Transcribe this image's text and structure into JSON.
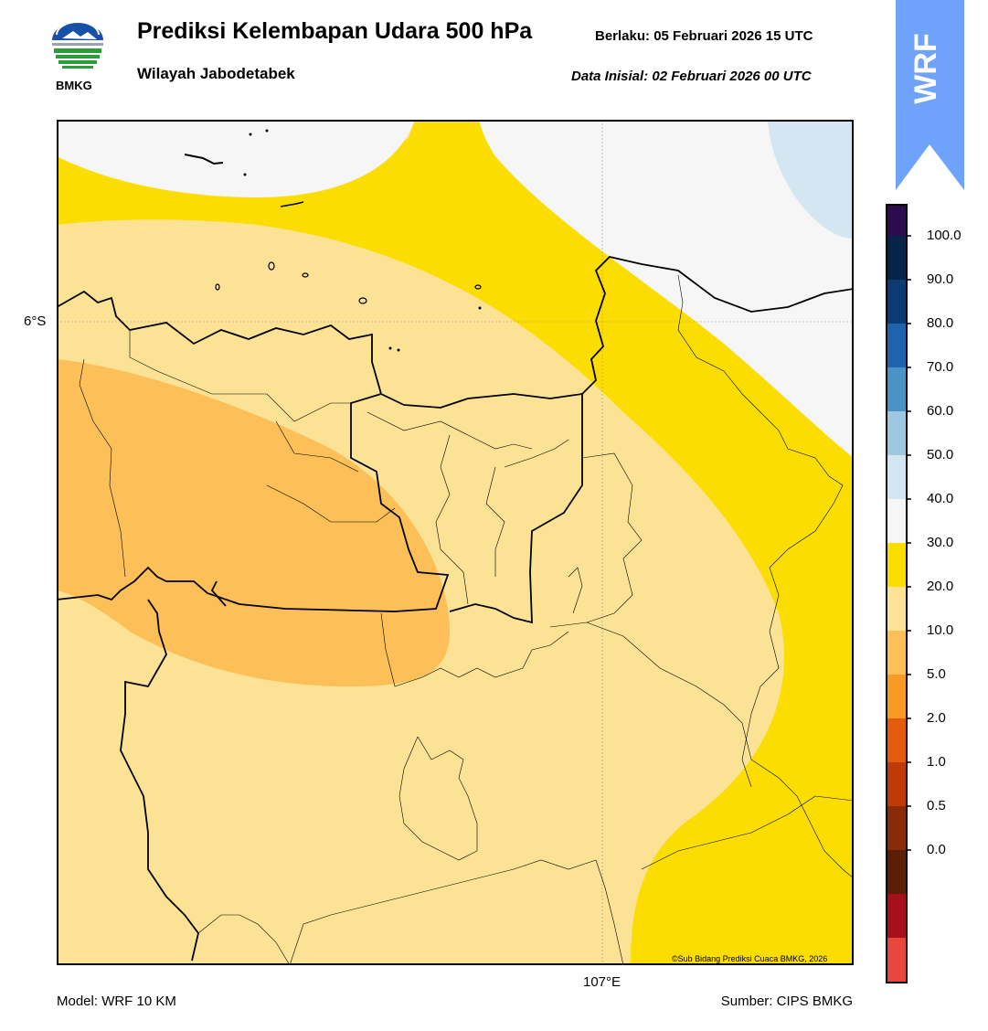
{
  "header": {
    "title": "Prediksi Kelembapan Udara 500 hPa",
    "subtitle": "Wilayah Jabodetabek",
    "valid_time": "Berlaku:  05 Februari 2026 15 UTC",
    "init_time": "Data Inisial:  02 Februari 2026 00 UTC",
    "logo_text": "BMKG",
    "model_badge": "WRF"
  },
  "map": {
    "lat_label": "6°S",
    "lon_label": "107°E",
    "copyright": "©Sub Bidang Prediksi Cuaca BMKG, 2026"
  },
  "footer": {
    "model": "Model: WRF 10 KM",
    "source": "Sumber: CIPS BMKG"
  },
  "colorbar": {
    "labels": [
      "100.0",
      "90.0",
      "80.0",
      "70.0",
      "60.0",
      "50.0",
      "40.0",
      "30.0",
      "20.0",
      "10.0",
      "5.0",
      "2.0",
      "1.0",
      "0.5",
      "0.0"
    ],
    "colors": [
      "#2d0b4e",
      "#06244a",
      "#0d3a73",
      "#1f63ad",
      "#4a93c6",
      "#9dc8e0",
      "#d3e6f1",
      "#f6f6f6",
      "#fbdd00",
      "#fce294",
      "#fdbf57",
      "#f99a26",
      "#e35c0e",
      "#bf3a07",
      "#8a2b08",
      "#5a1f07",
      "#a5101a",
      "#e8463a"
    ]
  },
  "colors": {
    "humidity_20_30": "#fce294",
    "humidity_10_20": "#fdbf57",
    "humidity_30_40": "#fbdd00",
    "humidity_40_50": "#f6f6f6",
    "humidity_50_60": "#d3e6f1"
  }
}
